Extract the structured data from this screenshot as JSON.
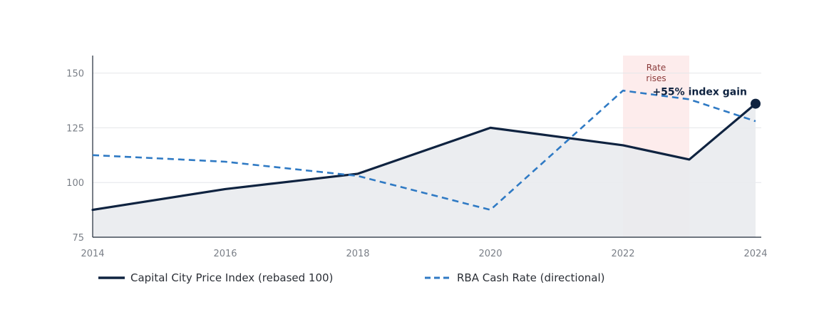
{
  "chart_data": {
    "type": "line",
    "title": "",
    "xlabel": "",
    "ylabel": "",
    "x_ticks": [
      2014,
      2016,
      2018,
      2020,
      2022,
      2024
    ],
    "y_ticks": [
      75,
      100,
      125,
      150
    ],
    "ylim": [
      75,
      158
    ],
    "xlim": [
      2014,
      2024
    ],
    "series": [
      {
        "name": "Capital City Price Index (rebased 100)",
        "style": "solid",
        "color": "#0f2340",
        "x": [
          2014,
          2016,
          2018,
          2020,
          2022,
          2023,
          2024
        ],
        "values": [
          87.5,
          97,
          104,
          125,
          117,
          110.5,
          136
        ]
      },
      {
        "name": "RBA Cash Rate (directional)",
        "style": "dashed",
        "color": "#2f7ac4",
        "x": [
          2014,
          2016,
          2018,
          2020,
          2022,
          2023,
          2024
        ],
        "values": [
          112.5,
          109.5,
          103,
          87.5,
          142,
          138,
          128
        ]
      }
    ],
    "shaded_region": {
      "x_start": 2022,
      "x_end": 2023,
      "label": "Rate\nrises",
      "color": "#fdecec"
    },
    "annotation": {
      "text": "+55% index gain",
      "x": 2024,
      "y": 136
    },
    "grid": true,
    "legend_position": "bottom"
  }
}
